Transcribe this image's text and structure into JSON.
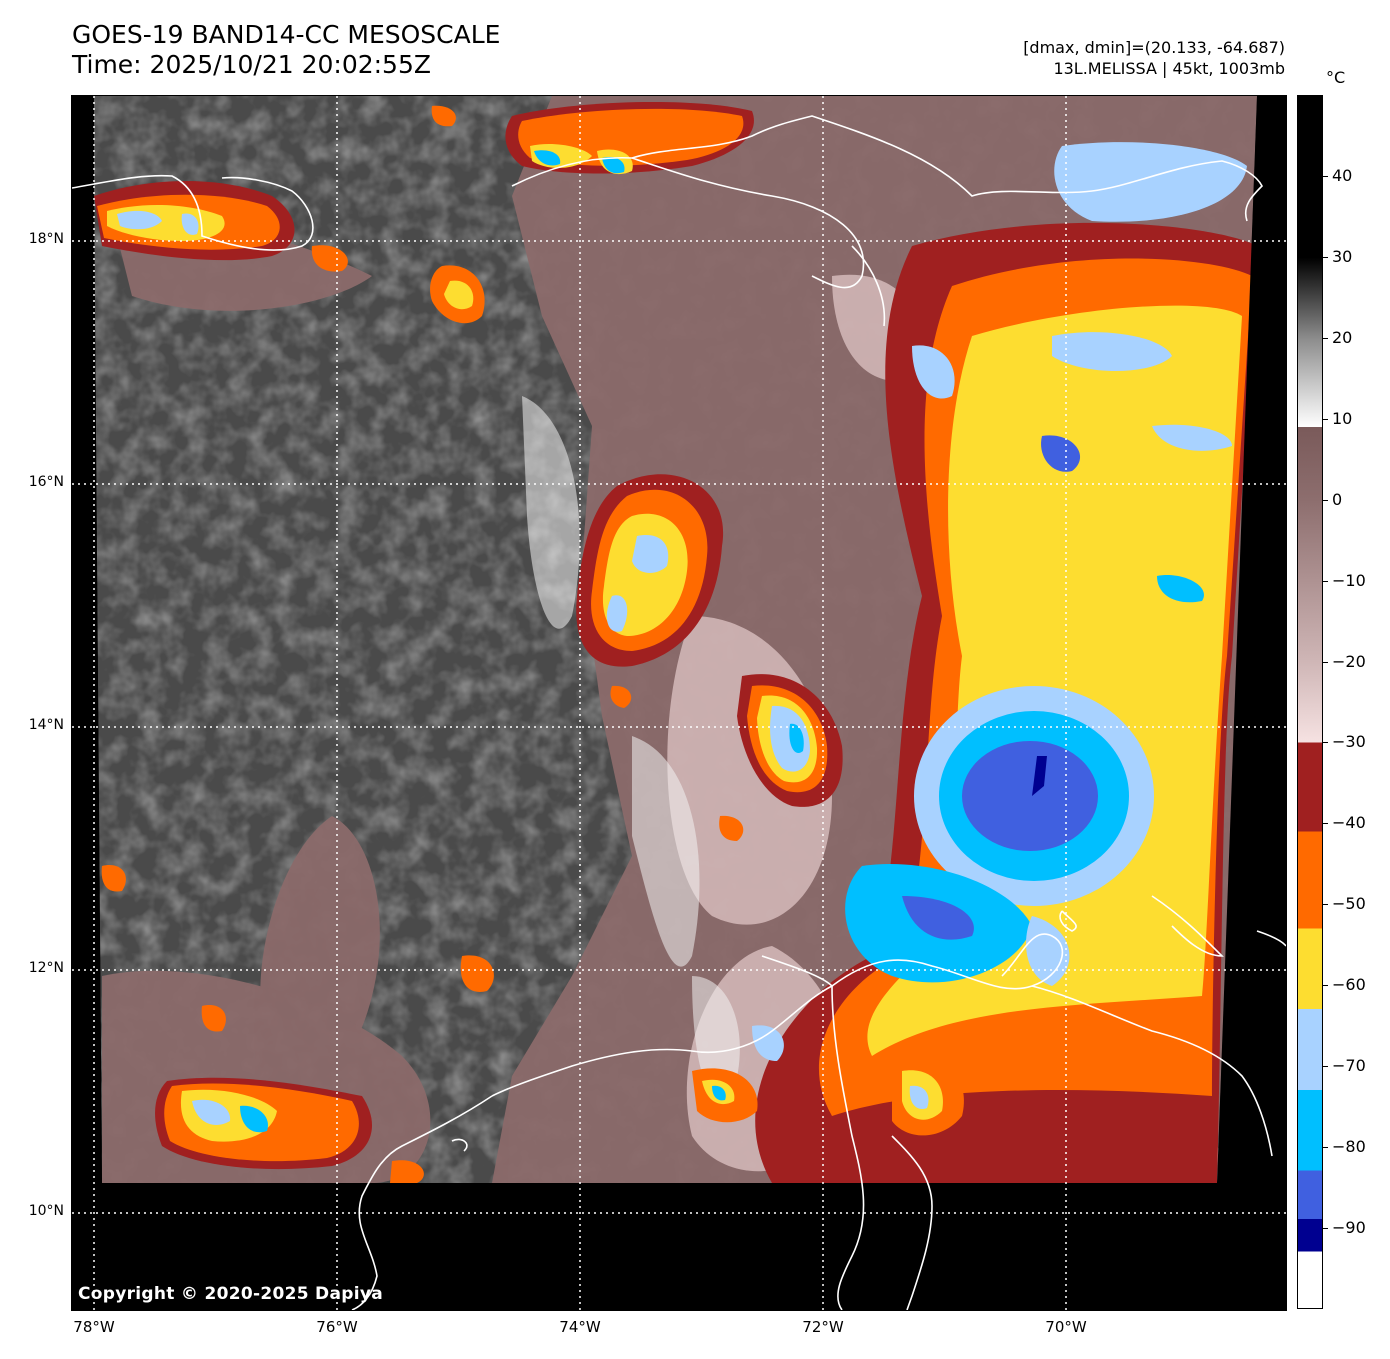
{
  "header": {
    "title_line1": "GOES-19 BAND14-CC MESOSCALE",
    "title_line2": "Time: 2025/10/21 20:02:55Z",
    "stats_line1": "[dmax, dmin]=(20.133, -64.687)",
    "stats_line2": "13L.MELISSA | 45kt, 1003mb"
  },
  "map": {
    "copyright": "Copyright © 2020-2025 Dapiya",
    "lat_labels": [
      "18°N",
      "16°N",
      "14°N",
      "12°N",
      "10°N"
    ],
    "lon_labels": [
      "78°W",
      "76°W",
      "74°W",
      "72°W",
      "70°W"
    ],
    "lat_values": [
      18,
      16,
      14,
      12,
      10
    ],
    "lon_values": [
      -78,
      -76,
      -74,
      -72,
      -70
    ],
    "extent": {
      "lon_min": -78.2,
      "lon_max": -68.2,
      "lat_min": 9.2,
      "lat_max": 19.2
    },
    "colors": {
      "coast": "#ffffff",
      "grid": "#ffffff",
      "no_data": "#000000",
      "clear_sky": "#4a4a4a",
      "warm_cloud": "#8b6a6a",
      "cold_40": "#a02020",
      "cold_50": "#ff6a00",
      "cold_60": "#fddd30",
      "cold_65": "#a8d2ff",
      "cold_70": "#00bfff",
      "cold_80": "#4060e0",
      "cold_85": "#000090"
    }
  },
  "colorbar": {
    "unit": "°C",
    "ticks": [
      "40",
      "30",
      "20",
      "10",
      "0",
      "−10",
      "−20",
      "−30",
      "−40",
      "−50",
      "−60",
      "−70",
      "−80",
      "−90"
    ],
    "tick_values": [
      40,
      30,
      20,
      10,
      0,
      -10,
      -20,
      -30,
      -40,
      -50,
      -60,
      -70,
      -80,
      -90
    ],
    "range": [
      -100,
      50
    ]
  }
}
